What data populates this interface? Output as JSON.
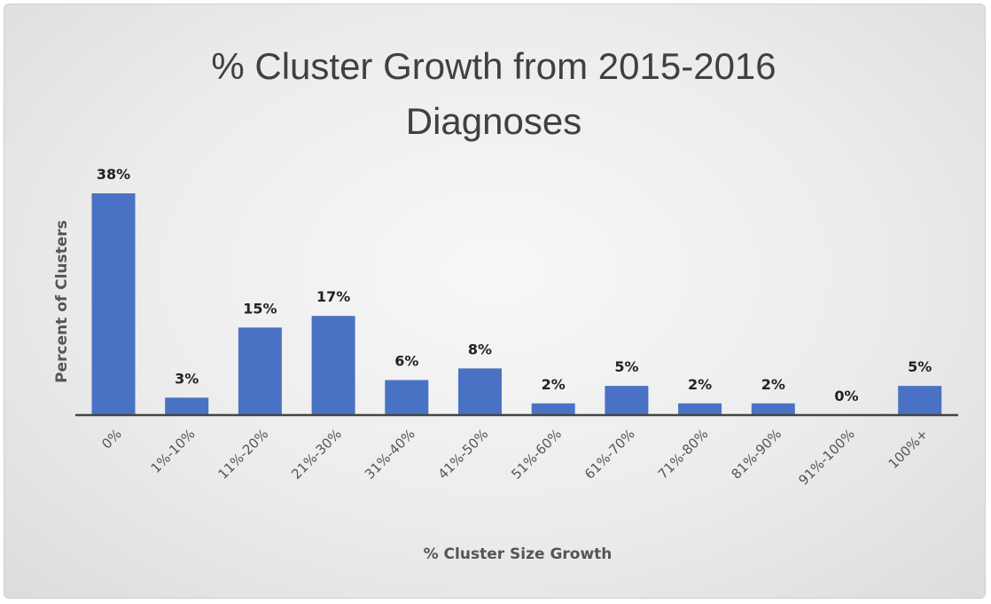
{
  "chart_data": {
    "type": "bar",
    "title": "% Cluster Growth from 2015-2016 Diagnoses",
    "title_lines": [
      "% Cluster Growth from 2015-2016",
      "Diagnoses"
    ],
    "xlabel": "% Cluster Size Growth",
    "ylabel": "Percent of Clusters",
    "categories": [
      "0%",
      "1%-10%",
      "11%-20%",
      "21%-30%",
      "31%-40%",
      "41%-50%",
      "51%-60%",
      "61%-70%",
      "71%-80%",
      "81%-90%",
      "91%-100%",
      "100%+"
    ],
    "values": [
      38,
      3,
      15,
      17,
      6,
      8,
      2,
      5,
      2,
      2,
      0,
      5
    ],
    "data_labels": [
      "38%",
      "3%",
      "15%",
      "17%",
      "6%",
      "8%",
      "2%",
      "5%",
      "2%",
      "2%",
      "0%",
      "5%"
    ],
    "ylim": [
      0,
      38
    ],
    "grid": false,
    "legend": "none",
    "bar_color": "#4a72c4",
    "background": "#ececec"
  }
}
